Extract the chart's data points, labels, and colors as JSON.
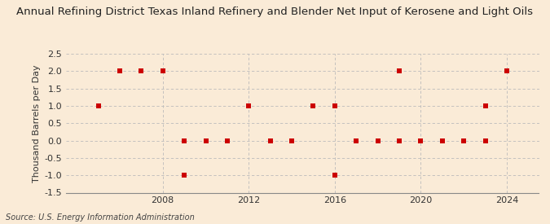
{
  "title": "Annual Refining District Texas Inland Refinery and Blender Net Input of Kerosene and Light Oils",
  "ylabel": "Thousand Barrels per Day",
  "source": "Source: U.S. Energy Information Administration",
  "background_color": "#faebd7",
  "marker_color": "#cc0000",
  "grid_color": "#bbbbbb",
  "data_points": [
    [
      2005,
      1.0
    ],
    [
      2006,
      2.0
    ],
    [
      2007,
      2.0
    ],
    [
      2008,
      2.0
    ],
    [
      2009,
      -1.0
    ],
    [
      2009,
      0.0
    ],
    [
      2010,
      0.0
    ],
    [
      2011,
      0.0
    ],
    [
      2012,
      1.0
    ],
    [
      2013,
      0.0
    ],
    [
      2014,
      0.0
    ],
    [
      2015,
      1.0
    ],
    [
      2016,
      1.0
    ],
    [
      2016,
      -1.0
    ],
    [
      2017,
      0.0
    ],
    [
      2018,
      0.0
    ],
    [
      2019,
      2.0
    ],
    [
      2019,
      0.0
    ],
    [
      2020,
      0.0
    ],
    [
      2021,
      0.0
    ],
    [
      2022,
      0.0
    ],
    [
      2023,
      1.0
    ],
    [
      2023,
      0.0
    ],
    [
      2024,
      2.0
    ]
  ],
  "ylim": [
    -1.5,
    2.5
  ],
  "yticks": [
    -1.5,
    -1.0,
    -0.5,
    0.0,
    0.5,
    1.0,
    1.5,
    2.0,
    2.5
  ],
  "xlim": [
    2003.5,
    2025.5
  ],
  "xticks": [
    2008,
    2012,
    2016,
    2020,
    2024
  ],
  "title_fontsize": 9.5,
  "label_fontsize": 8,
  "tick_fontsize": 8,
  "source_fontsize": 7
}
